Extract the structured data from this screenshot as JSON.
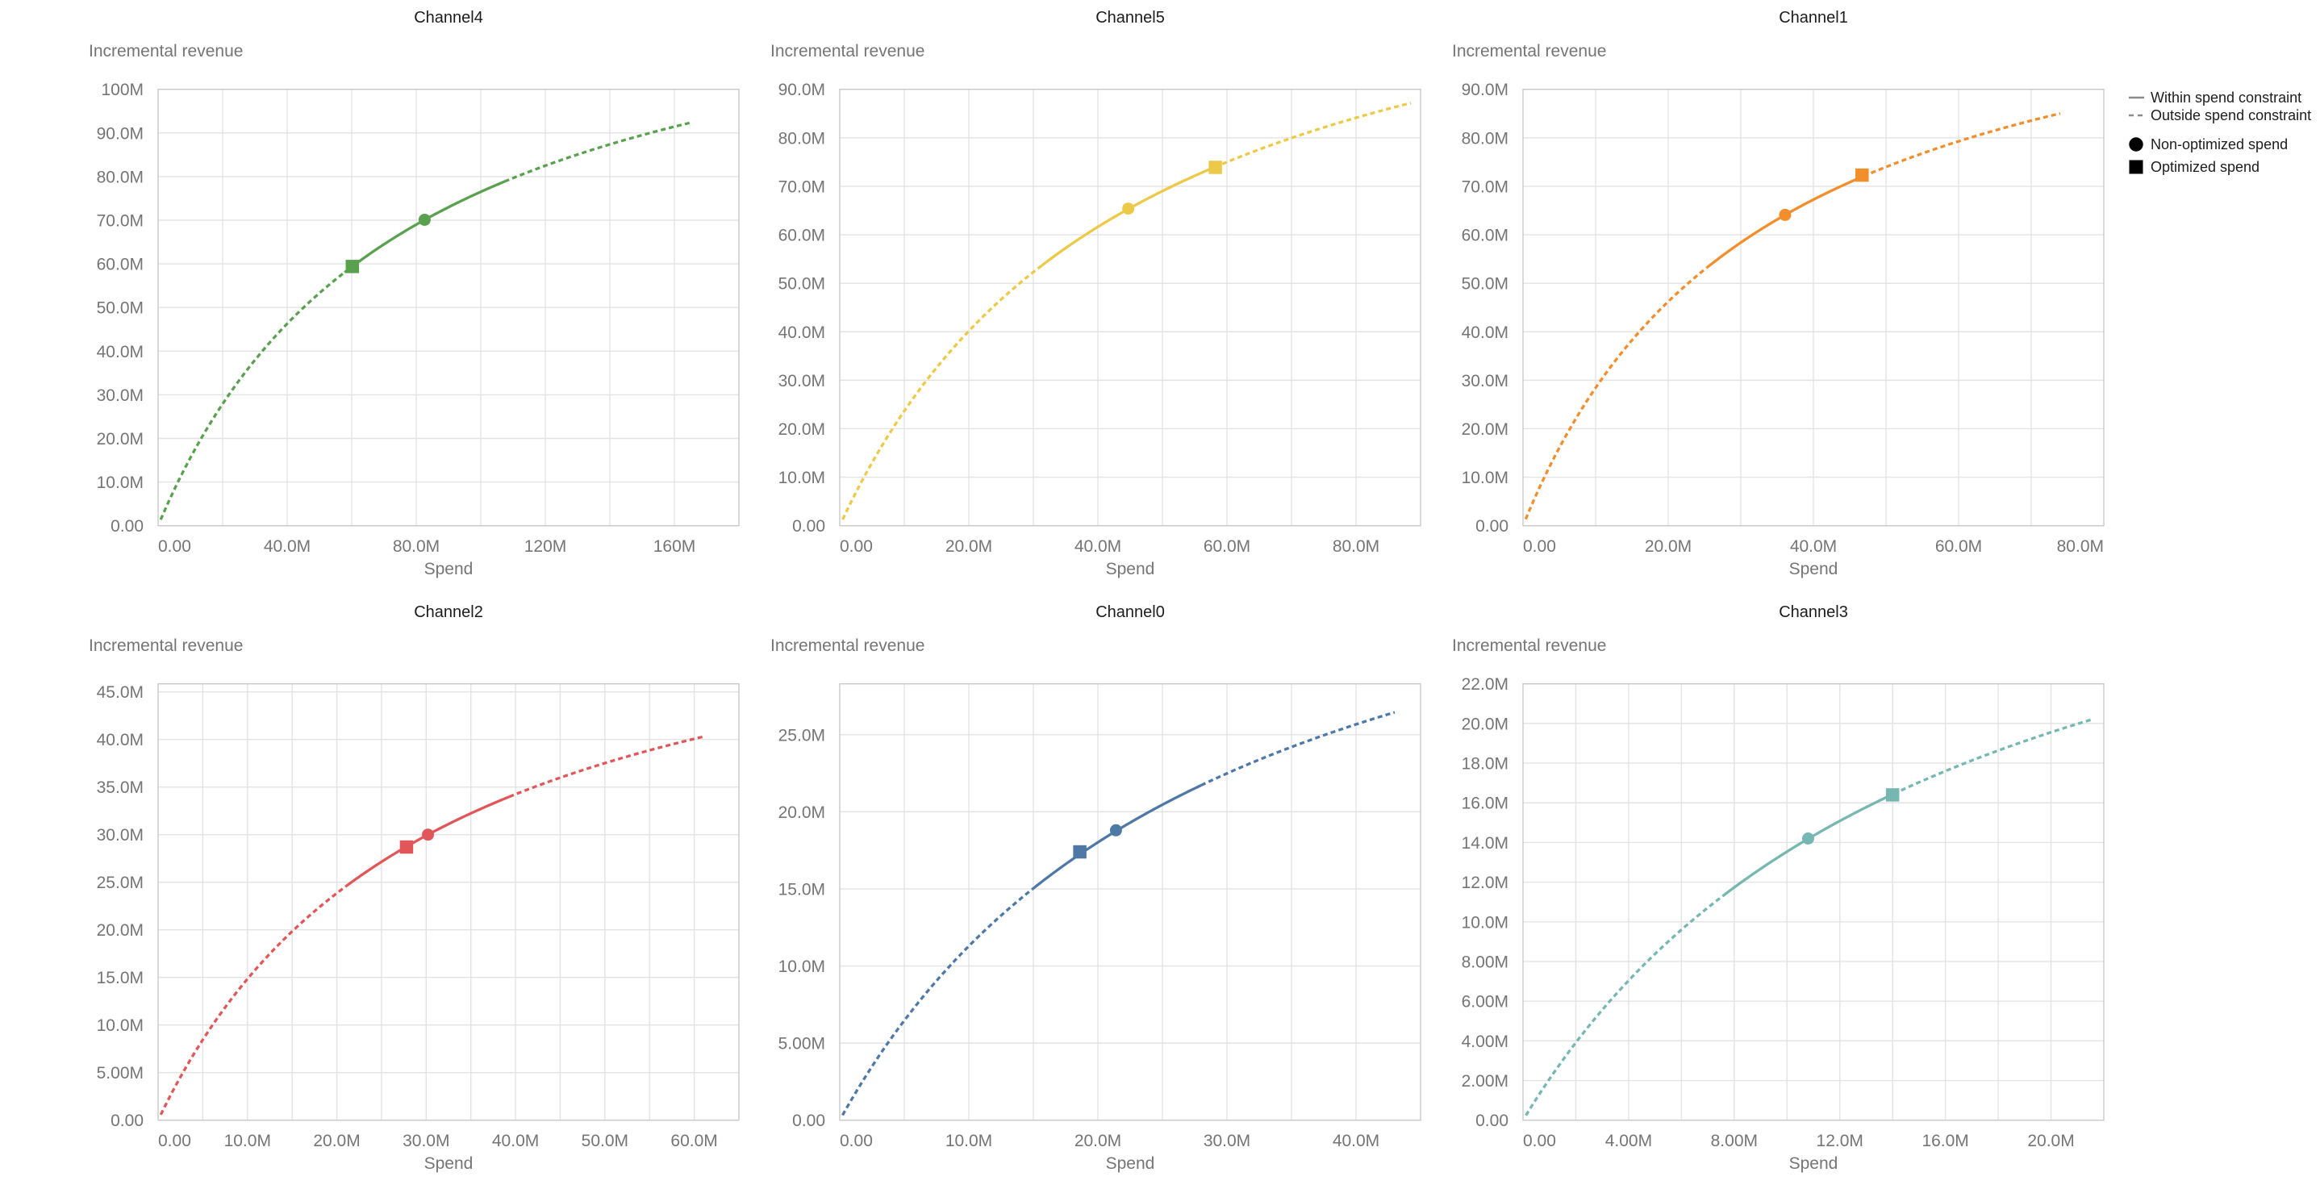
{
  "figure": {
    "y_axis_title": "Incremental revenue",
    "x_axis_title": "Spend",
    "units": "millions",
    "grid_color": "#E3E3E3",
    "border_color": "#C9C9C9",
    "tick_label_color": "#757575",
    "axis_title_color": "#757575",
    "chart_title_color": "#1c1c1c"
  },
  "legend": {
    "items": [
      {
        "label": "Within spend constraint",
        "swatch": "solid-line"
      },
      {
        "label": "Outside spend constraint",
        "swatch": "dashed-line"
      },
      {
        "label": "Non-optimized spend",
        "swatch": "circle"
      },
      {
        "label": "Optimized spend",
        "swatch": "square"
      }
    ],
    "line_color": "#8A8A8A",
    "symbol_color": "#000000"
  },
  "chart_data": [
    {
      "type": "line",
      "title": "Channel4",
      "color": "#59A14F",
      "xlabel": "Spend",
      "ylabel": "Incremental revenue",
      "x_domain": [
        0,
        180
      ],
      "x_grid_step": 20,
      "x_label_step": 40,
      "x_label_max": 160,
      "y_domain": [
        0,
        100
      ],
      "y_tick_step": 10,
      "y_tick_max": 100,
      "curve": {
        "model": "hill_saturation",
        "a": 135.5,
        "k": 77.1,
        "x_start": 0.8,
        "x_end": 165.3
      },
      "solid_range": [
        57.8,
        107.4
      ],
      "non_optimized_spend": {
        "x": 82.6,
        "y": 70.1
      },
      "optimized_spend": {
        "x": 60.2,
        "y": 59.4
      }
    },
    {
      "type": "line",
      "title": "Channel5",
      "color": "#EDC948",
      "xlabel": "Spend",
      "ylabel": "Incremental revenue",
      "x_domain": [
        0,
        90
      ],
      "x_grid_step": 10,
      "x_label_step": 20,
      "x_label_max": 80,
      "y_domain": [
        0,
        90
      ],
      "y_tick_step": 10,
      "y_tick_max": 90,
      "curve": {
        "model": "hill_saturation",
        "a": 132.5,
        "k": 46.0,
        "x_start": 0.45,
        "x_end": 88.5
      },
      "solid_range": [
        31.3,
        58.1
      ],
      "non_optimized_spend": {
        "x": 44.7,
        "y": 65.4
      },
      "optimized_spend": {
        "x": 58.2,
        "y": 73.9
      }
    },
    {
      "type": "line",
      "title": "Channel1",
      "color": "#F28E2B",
      "xlabel": "Spend",
      "ylabel": "Incremental revenue",
      "x_domain": [
        0,
        80
      ],
      "x_grid_step": 10,
      "x_label_step": 20,
      "x_label_max": 80,
      "y_domain": [
        0,
        90
      ],
      "y_tick_step": 10,
      "y_tick_max": 90,
      "curve": {
        "model": "hill_saturation",
        "a": 123.4,
        "k": 33.4,
        "x_start": 0.37,
        "x_end": 74.0
      },
      "solid_range": [
        25.3,
        46.9
      ],
      "non_optimized_spend": {
        "x": 36.1,
        "y": 64.1
      },
      "optimized_spend": {
        "x": 46.7,
        "y": 72.3
      }
    },
    {
      "type": "line",
      "title": "Channel2",
      "color": "#E15759",
      "xlabel": "Spend",
      "ylabel": "Incremental revenue",
      "x_domain": [
        0,
        65
      ],
      "x_grid_step": 5,
      "x_label_step": 10,
      "x_label_max": 60,
      "y_domain": [
        0,
        45.85
      ],
      "y_tick_step": 5,
      "y_tick_max": 45,
      "curve": {
        "model": "hill_saturation",
        "a": 60.7,
        "k": 30.9,
        "x_start": 0.3,
        "x_end": 61.0
      },
      "solid_range": [
        21.1,
        39.3
      ],
      "non_optimized_spend": {
        "x": 30.2,
        "y": 30.0
      },
      "optimized_spend": {
        "x": 27.8,
        "y": 28.7
      }
    },
    {
      "type": "line",
      "title": "Channel0",
      "color": "#4E79A7",
      "xlabel": "Spend",
      "ylabel": "Incremental revenue",
      "x_domain": [
        0,
        45
      ],
      "x_grid_step": 5,
      "x_label_step": 10,
      "x_label_max": 40,
      "y_domain": [
        0,
        28.3
      ],
      "y_tick_step": 5,
      "y_tick_max": 25,
      "curve": {
        "model": "hill_saturation",
        "a": 44.6,
        "k": 29.5,
        "x_start": 0.22,
        "x_end": 43.0
      },
      "solid_range": [
        15.1,
        28.0
      ],
      "non_optimized_spend": {
        "x": 21.4,
        "y": 18.8
      },
      "optimized_spend": {
        "x": 18.6,
        "y": 17.4
      }
    },
    {
      "type": "line",
      "title": "Channel3",
      "color": "#76B7B2",
      "xlabel": "Spend",
      "ylabel": "Incremental revenue",
      "x_domain": [
        0,
        22
      ],
      "x_grid_step": 2,
      "x_label_step": 4,
      "x_label_max": 20,
      "y_domain": [
        0,
        22
      ],
      "y_tick_step": 2,
      "y_tick_max": 22,
      "curve": {
        "model": "hill_saturation",
        "a": 35.2,
        "k": 16.0,
        "x_start": 0.11,
        "x_end": 21.6
      },
      "solid_range": [
        7.56,
        14.04
      ],
      "non_optimized_spend": {
        "x": 10.8,
        "y": 14.2
      },
      "optimized_spend": {
        "x": 14.0,
        "y": 16.4
      }
    }
  ]
}
